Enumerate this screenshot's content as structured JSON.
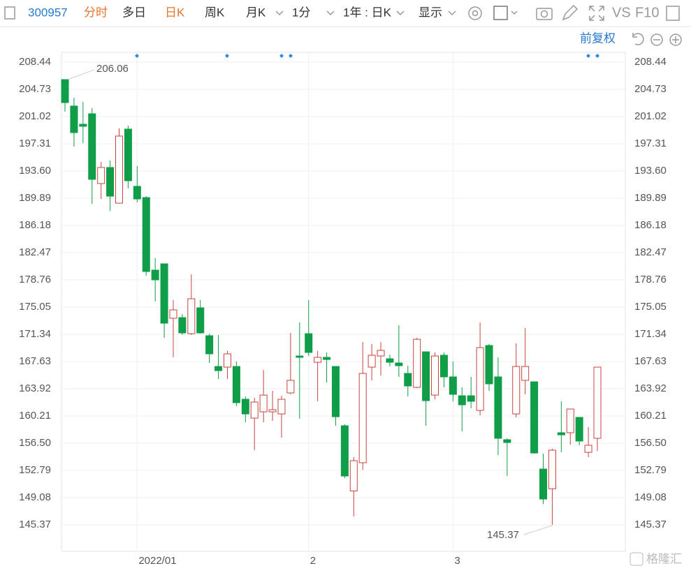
{
  "toolbar": {
    "code": "300957",
    "tabs": [
      "分时",
      "多日",
      "日K",
      "周K",
      "月K"
    ],
    "interval": "1分",
    "range": "1年 : 日K",
    "display": "显示",
    "vs": "VS",
    "f10": "F10",
    "adjust": "前复权"
  },
  "watermark": "格隆汇",
  "chart_data": {
    "type": "candlestick",
    "categories": [
      null,
      null,
      null,
      null,
      null,
      null,
      null,
      null,
      "2022/01",
      null,
      null,
      null,
      null,
      null,
      null,
      null,
      null,
      null,
      null,
      null,
      null,
      null,
      null,
      null,
      null,
      null,
      null,
      "2",
      null,
      null,
      null,
      null,
      null,
      null,
      null,
      null,
      null,
      null,
      null,
      null,
      null,
      null,
      null,
      "3",
      null,
      null,
      null,
      null,
      null,
      null,
      null,
      null,
      null,
      null,
      null,
      null,
      null,
      null,
      null,
      null
    ],
    "open": [
      206.06,
      202.45,
      199.97,
      201.4,
      191.89,
      194.08,
      189.22,
      199.31,
      191.51,
      189.98,
      180.09,
      180.95,
      173.53,
      173.62,
      171.43,
      174.95,
      171.15,
      166.96,
      166.87,
      166.96,
      162.49,
      159.92,
      160.78,
      160.78,
      160.49,
      163.35,
      168.39,
      171.43,
      167.53,
      168.2,
      166.96,
      158.88,
      149.99,
      153.84,
      166.87,
      168.39,
      168.01,
      167.44,
      166.01,
      164.11,
      168.96,
      163.06,
      168.49,
      165.54,
      162.97,
      162.97,
      160.97,
      169.82,
      165.54,
      156.98,
      160.49,
      165.07,
      164.87,
      152.98,
      150.29,
      157.93,
      157.93,
      160.02,
      155.26,
      157.17
    ],
    "high": [
      206.06,
      203.59,
      203.02,
      202.16,
      194.84,
      195.03,
      199.4,
      199.78,
      194.27,
      190.17,
      181.71,
      180.95,
      176.0,
      174.1,
      179.52,
      176.0,
      171.43,
      171.24,
      169.06,
      167.63,
      162.87,
      162.68,
      166.49,
      163.63,
      162.97,
      171.53,
      172.96,
      176.0,
      169.06,
      168.87,
      166.96,
      159.07,
      154.6,
      170.29,
      170.01,
      170.29,
      168.58,
      172.58,
      167.06,
      170.86,
      168.96,
      168.87,
      168.87,
      167.63,
      164.11,
      165.54,
      172.96,
      170.01,
      168.2,
      157.17,
      170.1,
      172.2,
      164.87,
      155.07,
      155.74,
      162.21,
      161.16,
      160.02,
      158.69,
      166.87
    ],
    "low": [
      201.69,
      196.93,
      197.4,
      189.13,
      189.79,
      188.18,
      189.22,
      191.22,
      189.32,
      179.33,
      175.81,
      170.86,
      168.2,
      171.24,
      171.24,
      171.43,
      167.44,
      165.26,
      165.26,
      161.54,
      159.35,
      155.55,
      159.35,
      159.54,
      157.26,
      163.16,
      159.83,
      168.39,
      162.21,
      164.78,
      158.88,
      151.74,
      146.51,
      152.89,
      165.07,
      165.73,
      166.96,
      165.54,
      162.87,
      164.02,
      158.88,
      162.49,
      164.11,
      162.21,
      158.12,
      161.26,
      160.3,
      163.63,
      154.88,
      152.03,
      160.02,
      163.16,
      155.07,
      148.22,
      145.37,
      155.26,
      156.31,
      156.22,
      154.6,
      155.45
    ],
    "close": [
      202.92,
      198.83,
      199.69,
      192.46,
      194.08,
      190.17,
      198.36,
      192.27,
      189.79,
      179.9,
      178.76,
      172.86,
      174.67,
      171.53,
      176.19,
      171.53,
      168.68,
      166.39,
      168.68,
      162.02,
      160.49,
      162.11,
      163.06,
      161.07,
      162.49,
      165.07,
      168.2,
      168.87,
      168.2,
      167.91,
      160.11,
      152.03,
      154.12,
      166.01,
      168.49,
      169.15,
      167.53,
      167.06,
      164.3,
      170.67,
      162.3,
      168.39,
      165.54,
      163.16,
      161.73,
      162.21,
      169.53,
      164.59,
      157.17,
      156.6,
      166.96,
      166.96,
      155.17,
      148.89,
      155.55,
      157.64,
      161.16,
      156.79,
      156.22,
      166.87
    ],
    "up_color": "#c9433b",
    "down_color": "#0f9d48",
    "annotations": [
      "206.06",
      "145.37"
    ],
    "ylim": [
      141.76,
      209.77
    ],
    "yticks": [
      208.44,
      204.73,
      201.02,
      197.31,
      {
        "value": 193.6,
        "label": "193.60"
      },
      189.89,
      186.18,
      182.47,
      178.76,
      175.05,
      171.34,
      167.63,
      163.92,
      160.21,
      {
        "value": 156.5,
        "label": "156.50"
      },
      152.79,
      149.08,
      145.37
    ],
    "grid": true
  }
}
